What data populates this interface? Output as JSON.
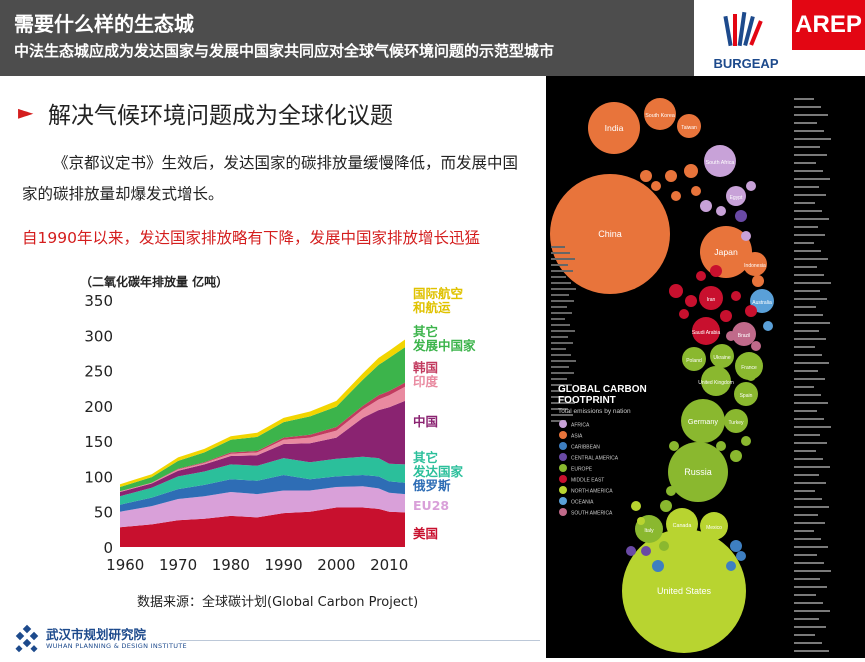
{
  "header": {
    "title": "需要什么样的生态城",
    "subtitle": "中法生态城应成为发达国家与发展中国家共同应对全球气候环境问题的示范型城市",
    "logo_left_text": "BURGEAP",
    "logo_right_text": "AREP"
  },
  "section": {
    "bullet": "►",
    "heading": "解决气候环境问题成为全球化议题",
    "paragraph": "《京都议定书》生效后，发达国家的碳排放量缓慢降低，而发展中国家的碳排放量却爆发式增长。",
    "highlight": "自1990年以来，发达国家排放略有下降，发展中国家排放增长迅猛"
  },
  "chart_data": {
    "type": "area",
    "ylabel": "（二氧化碳年排放量 亿吨）",
    "ylim": [
      0,
      360
    ],
    "yticks": [
      "0",
      "50",
      "100",
      "150",
      "200",
      "250",
      "300",
      "350"
    ],
    "xticks": [
      "1960",
      "1970",
      "1980",
      "1990",
      "2000",
      "2010"
    ],
    "x": [
      1959,
      1965,
      1970,
      1975,
      1980,
      1985,
      1990,
      1995,
      2000,
      2005,
      2008,
      2010,
      2013
    ],
    "series": [
      {
        "name": "美国",
        "color": "#c8102e",
        "values": [
          28,
          32,
          38,
          40,
          44,
          42,
          48,
          50,
          56,
          56,
          54,
          50,
          49
        ]
      },
      {
        "name": "EU28",
        "color": "#d9a0d9",
        "values": [
          22,
          26,
          30,
          32,
          34,
          33,
          32,
          30,
          29,
          30,
          29,
          27,
          26
        ]
      },
      {
        "name": "俄罗斯",
        "color": "#2e6db5",
        "values": [
          10,
          12,
          14,
          16,
          18,
          19,
          22,
          16,
          15,
          16,
          17,
          16,
          16
        ]
      },
      {
        "name": "其它发达国家",
        "color": "#2bbf9b",
        "values": [
          12,
          14,
          18,
          19,
          21,
          21,
          24,
          24,
          25,
          26,
          26,
          25,
          26
        ]
      },
      {
        "name": "中国",
        "color": "#8a2371",
        "values": [
          6,
          6,
          8,
          10,
          12,
          15,
          20,
          27,
          30,
          55,
          68,
          80,
          90
        ]
      },
      {
        "name": "印度",
        "color": "#e98aa0",
        "values": [
          1,
          1,
          2,
          2,
          3,
          4,
          6,
          8,
          10,
          12,
          15,
          17,
          20
        ]
      },
      {
        "name": "韩国",
        "color": "#c23b5f",
        "values": [
          0,
          0,
          1,
          1,
          2,
          2,
          3,
          4,
          5,
          5,
          6,
          6,
          6
        ]
      },
      {
        "name": "其它发展中国家",
        "color": "#3cb44b",
        "values": [
          6,
          8,
          11,
          14,
          18,
          20,
          22,
          26,
          29,
          37,
          43,
          47,
          50
        ]
      },
      {
        "name": "国际航空和航运",
        "color": "#f2d500",
        "values": [
          4,
          4,
          5,
          5,
          5,
          6,
          6,
          7,
          8,
          9,
          10,
          10,
          11
        ]
      }
    ],
    "legend_labels": [
      {
        "key": "air",
        "text": "国际航空\n和航运"
      },
      {
        "key": "other_dev",
        "text": "其它\n发展中国家"
      },
      {
        "key": "korea",
        "text": "韩国"
      },
      {
        "key": "india",
        "text": "印度"
      },
      {
        "key": "china",
        "text": "中国"
      },
      {
        "key": "other_developed",
        "text": "其它\n发达国家"
      },
      {
        "key": "russia",
        "text": "俄罗斯"
      },
      {
        "key": "eu",
        "text": "EU28"
      },
      {
        "key": "usa",
        "text": "美国"
      }
    ]
  },
  "source_text": "数据来源：全球碳计划(Global Carbon Project)",
  "footer": {
    "org_cn": "武汉市规划研究院",
    "org_en": "WUHAN PLANNING & DESIGN INSTITUTE"
  },
  "poster": {
    "title_line1": "GLOBAL CARBON",
    "title_line2": "FOOTPRINT",
    "subtitle": "Total emissions by nation",
    "legend": [
      {
        "label": "AFRICA",
        "color": "#c8a2d8"
      },
      {
        "label": "ASIA",
        "color": "#e8743b"
      },
      {
        "label": "CARIBBEAN",
        "color": "#3e7fc1"
      },
      {
        "label": "CENTRAL AMERICA",
        "color": "#6a4aa5"
      },
      {
        "label": "EUROPE",
        "color": "#8ab82f"
      },
      {
        "label": "MIDDLE EAST",
        "color": "#c8102e"
      },
      {
        "label": "NORTH AMERICA",
        "color": "#b8d430"
      },
      {
        "label": "OCEANIA",
        "color": "#5aa0d8"
      },
      {
        "label": "SOUTH AMERICA",
        "color": "#c06a8a"
      }
    ],
    "bubbles": [
      {
        "label": "China",
        "color": "#e8743b"
      },
      {
        "label": "United States",
        "color": "#b8d430"
      },
      {
        "label": "India",
        "color": "#e8743b"
      },
      {
        "label": "Russia",
        "color": "#8ab82f"
      },
      {
        "label": "Japan",
        "color": "#e8743b"
      },
      {
        "label": "Germany",
        "color": "#8ab82f"
      },
      {
        "label": "South Korea",
        "color": "#e8743b"
      },
      {
        "label": "Canada",
        "color": "#b8d430"
      },
      {
        "label": "Iran",
        "color": "#c8102e"
      },
      {
        "label": "Saudi Arabia",
        "color": "#c8102e"
      },
      {
        "label": "United Kingdom",
        "color": "#8ab82f"
      },
      {
        "label": "Mexico",
        "color": "#b8d430"
      },
      {
        "label": "South Africa",
        "color": "#c8a2d8"
      },
      {
        "label": "Brazil",
        "color": "#c06a8a"
      },
      {
        "label": "Australia",
        "color": "#5aa0d8"
      },
      {
        "label": "Italy",
        "color": "#8ab82f"
      },
      {
        "label": "France",
        "color": "#8ab82f"
      },
      {
        "label": "Poland",
        "color": "#8ab82f"
      },
      {
        "label": "Ukraine",
        "color": "#8ab82f"
      },
      {
        "label": "Spain",
        "color": "#8ab82f"
      },
      {
        "label": "Turkey",
        "color": "#8ab82f"
      },
      {
        "label": "Taiwan",
        "color": "#e8743b"
      },
      {
        "label": "Indonesia",
        "color": "#e8743b"
      },
      {
        "label": "Egypt",
        "color": "#c8a2d8"
      }
    ]
  }
}
